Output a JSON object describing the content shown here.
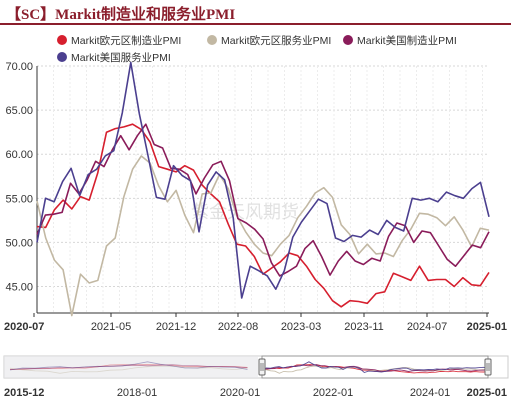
{
  "title": "【SC】Markit制造业和服务业PMI",
  "watermark": "紫金天风期货",
  "chart_data": {
    "type": "line",
    "ylim": [
      42,
      70
    ],
    "yticks": [
      "70.00",
      "65.00",
      "60.00",
      "55.00",
      "50.00",
      "45.00"
    ],
    "ytick_values": [
      70,
      65,
      60,
      55,
      50,
      45
    ],
    "xticks": [
      "2020-07",
      "2021-05",
      "2021-12",
      "2022-08",
      "2023-03",
      "2023-11",
      "2024-07",
      "2025-01"
    ],
    "legend_position": "top",
    "grid": true,
    "series": [
      {
        "name": "Markit欧元区制造业PMI",
        "color": "#d61f2e",
        "values": [
          51.8,
          51.7,
          53.7,
          54.8,
          53.8,
          55.2,
          54.8,
          57.9,
          62.5,
          62.9,
          63.1,
          63.4,
          62.8,
          61.4,
          58.6,
          58.3,
          58.0,
          58.7,
          58.2,
          56.5,
          55.5,
          54.6,
          52.1,
          49.8,
          49.6,
          48.4,
          46.4,
          47.1,
          47.8,
          48.8,
          48.5,
          47.3,
          45.8,
          44.8,
          43.4,
          42.7,
          43.4,
          43.3,
          43.1,
          44.2,
          44.4,
          46.5,
          46.1,
          45.7,
          47.3,
          45.7,
          45.8,
          45.8,
          45.0,
          46.0,
          45.2,
          45.1,
          46.6
        ]
      },
      {
        "name": "Markit欧元区服务业PMI",
        "color": "#c2b8a3",
        "values": [
          54.7,
          50.5,
          48.0,
          46.9,
          41.7,
          46.4,
          45.4,
          45.7,
          49.6,
          50.5,
          55.2,
          58.3,
          59.8,
          59.0,
          56.4,
          54.6,
          55.9,
          53.1,
          51.1,
          55.5,
          55.6,
          57.7,
          56.1,
          53.0,
          51.2,
          49.8,
          48.8,
          48.5,
          49.8,
          50.8,
          52.8,
          54.1,
          55.6,
          56.2,
          55.1,
          52.0,
          50.9,
          48.7,
          49.8,
          48.7,
          48.8,
          48.4,
          50.2,
          51.5,
          53.3,
          53.2,
          52.8,
          51.9,
          52.9,
          51.4,
          49.5,
          51.6,
          51.4
        ]
      },
      {
        "name": "Markit美国制造业PMI",
        "color": "#8a1c5a",
        "values": [
          50.9,
          53.1,
          53.2,
          53.4,
          56.7,
          55.5,
          57.1,
          59.2,
          58.6,
          60.5,
          62.1,
          60.5,
          62.1,
          63.4,
          61.1,
          60.7,
          58.4,
          58.3,
          57.7,
          55.5,
          57.3,
          58.8,
          59.2,
          57.0,
          52.7,
          52.2,
          51.5,
          50.4,
          47.7,
          46.2,
          46.7,
          47.3,
          49.3,
          50.2,
          48.4,
          46.3,
          47.9,
          49.0,
          47.9,
          47.5,
          48.2,
          47.9,
          50.7,
          52.2,
          51.9,
          50.0,
          51.3,
          51.1,
          49.6,
          48.1,
          47.3,
          48.5,
          49.7,
          49.4,
          51.2
        ]
      },
      {
        "name": "Markit美国服务业PMI",
        "color": "#4b3f8f",
        "values": [
          50.0,
          55.0,
          54.6,
          56.9,
          58.4,
          55.3,
          57.7,
          58.3,
          59.8,
          60.4,
          64.7,
          70.4,
          64.6,
          59.9,
          55.1,
          54.9,
          58.7,
          57.6,
          57.0,
          51.2,
          56.5,
          58.0,
          57.1,
          52.8,
          43.7,
          47.3,
          46.8,
          46.2,
          44.7,
          46.8,
          50.6,
          52.3,
          53.6,
          54.9,
          54.4,
          50.5,
          50.1,
          50.8,
          50.6,
          51.4,
          50.9,
          52.5,
          51.7,
          51.3,
          55.0,
          54.8,
          55.0,
          54.6,
          55.7,
          55.3,
          55.0,
          56.1,
          56.8,
          52.9
        ]
      }
    ],
    "navigator": {
      "xticks": [
        "2015-12",
        "2018-01",
        "2020-01",
        "2022-01",
        "2024-01",
        "2025-01"
      ]
    }
  }
}
